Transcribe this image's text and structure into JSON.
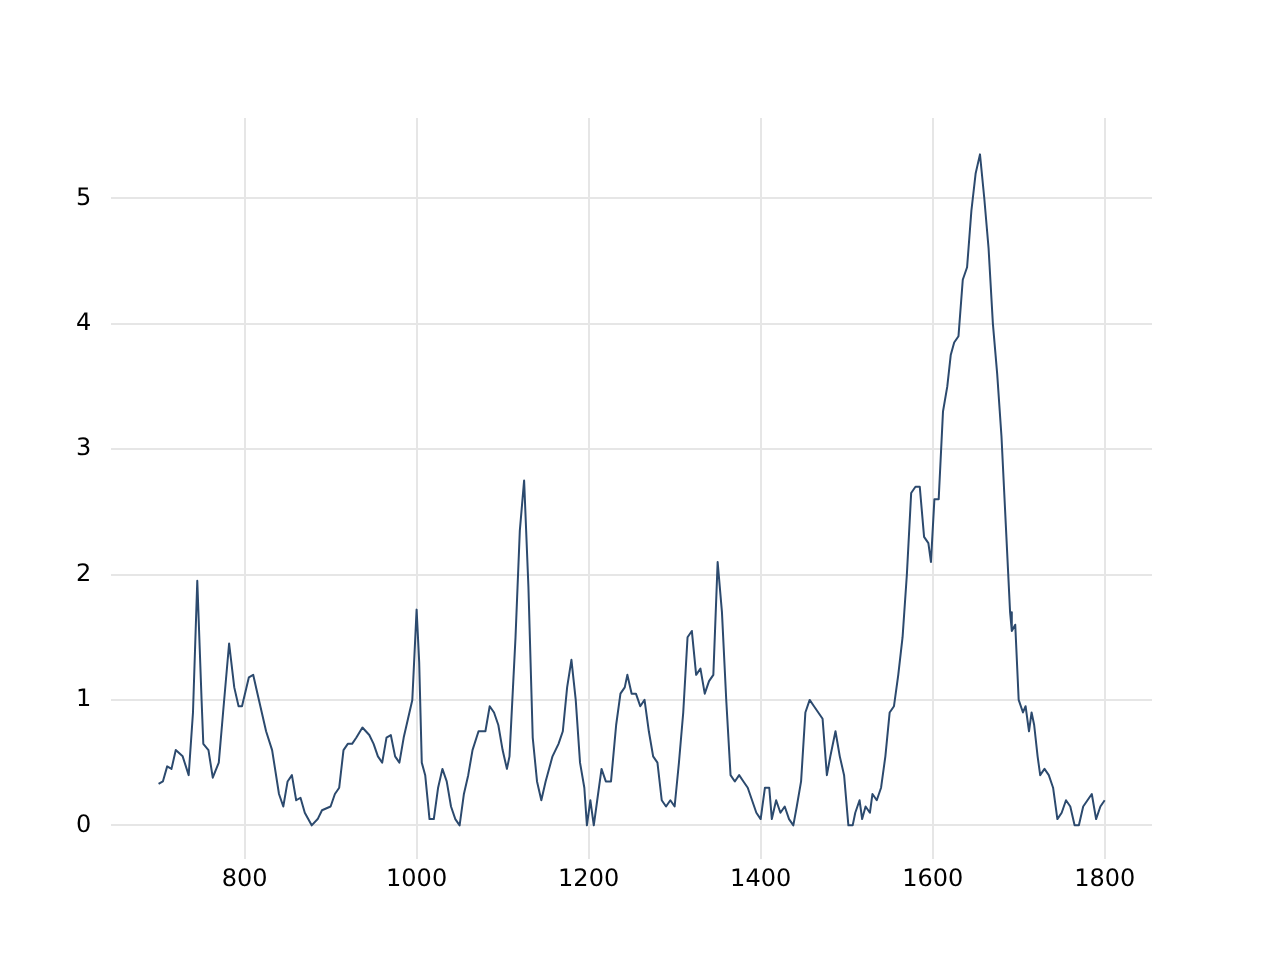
{
  "chart_data": {
    "type": "line",
    "x": [
      700,
      705,
      710,
      715,
      720,
      728,
      735,
      740,
      745,
      750,
      752,
      758,
      763,
      770,
      775,
      782,
      788,
      793,
      797,
      805,
      810,
      815,
      820,
      825,
      832,
      840,
      845,
      850,
      855,
      860,
      865,
      870,
      878,
      885,
      890,
      900,
      905,
      910,
      915,
      920,
      925,
      930,
      937,
      945,
      950,
      955,
      960,
      965,
      970,
      975,
      980,
      985,
      990,
      995,
      1000,
      1003,
      1006,
      1010,
      1015,
      1020,
      1025,
      1030,
      1035,
      1040,
      1045,
      1050,
      1055,
      1060,
      1065,
      1072,
      1080,
      1085,
      1090,
      1095,
      1100,
      1105,
      1108,
      1115,
      1120,
      1125,
      1130,
      1135,
      1140,
      1145,
      1150,
      1158,
      1165,
      1170,
      1175,
      1180,
      1185,
      1190,
      1195,
      1198,
      1202,
      1206,
      1210,
      1215,
      1220,
      1226,
      1232,
      1237,
      1242,
      1245,
      1250,
      1255,
      1260,
      1265,
      1270,
      1275,
      1280,
      1285,
      1290,
      1295,
      1300,
      1305,
      1310,
      1315,
      1320,
      1325,
      1330,
      1335,
      1340,
      1345,
      1350,
      1355,
      1360,
      1365,
      1370,
      1375,
      1380,
      1385,
      1390,
      1395,
      1400,
      1405,
      1410,
      1413,
      1418,
      1423,
      1428,
      1433,
      1438,
      1442,
      1447,
      1452,
      1457,
      1462,
      1467,
      1472,
      1477,
      1481,
      1487,
      1492,
      1497,
      1502,
      1507,
      1510,
      1515,
      1518,
      1522,
      1527,
      1530,
      1535,
      1540,
      1545,
      1550,
      1555,
      1560,
      1565,
      1570,
      1575,
      1580,
      1585,
      1590,
      1595,
      1598,
      1602,
      1607,
      1612,
      1617,
      1621,
      1625,
      1630,
      1635,
      1640,
      1645,
      1650,
      1655,
      1660,
      1665,
      1670,
      1675,
      1680,
      1685,
      1690,
      1692,
      1696,
      1700,
      1705,
      1708,
      1712,
      1715,
      1718,
      1722,
      1725,
      1730,
      1735,
      1740,
      1745,
      1750,
      1755,
      1760,
      1765,
      1770,
      1775,
      1780,
      1785,
      1790,
      1795,
      1800
    ],
    "series": [
      {
        "color": "#2c4a6e",
        "values": [
          0.33,
          0.35,
          0.47,
          0.45,
          0.6,
          0.55,
          0.4,
          0.9,
          1.95,
          1.0,
          0.65,
          0.6,
          0.38,
          0.5,
          0.9,
          1.45,
          1.1,
          0.95,
          0.95,
          1.18,
          1.2,
          1.05,
          0.9,
          0.75,
          0.6,
          0.25,
          0.15,
          0.35,
          0.4,
          0.2,
          0.22,
          0.1,
          0.0,
          0.05,
          0.12,
          0.15,
          0.25,
          0.3,
          0.6,
          0.65,
          0.65,
          0.7,
          0.78,
          0.72,
          0.65,
          0.55,
          0.5,
          0.7,
          0.72,
          0.55,
          0.5,
          0.7,
          0.85,
          1.0,
          1.72,
          1.3,
          0.5,
          0.4,
          0.05,
          0.05,
          0.3,
          0.45,
          0.35,
          0.15,
          0.05,
          0.0,
          0.25,
          0.4,
          0.6,
          0.75,
          0.75,
          0.95,
          0.9,
          0.8,
          0.6,
          0.45,
          0.55,
          1.5,
          2.35,
          2.75,
          1.9,
          0.7,
          0.35,
          0.2,
          0.35,
          0.55,
          0.65,
          0.75,
          1.1,
          1.32,
          1.0,
          0.5,
          0.3,
          0.0,
          0.2,
          0.0,
          0.2,
          0.45,
          0.35,
          0.35,
          0.8,
          1.05,
          1.1,
          1.2,
          1.05,
          1.05,
          0.95,
          1.0,
          0.75,
          0.55,
          0.5,
          0.2,
          0.15,
          0.2,
          0.15,
          0.5,
          0.9,
          1.5,
          1.55,
          1.2,
          1.25,
          1.05,
          1.15,
          1.2,
          2.1,
          1.7,
          1.0,
          0.4,
          0.35,
          0.4,
          0.35,
          0.3,
          0.2,
          0.1,
          0.05,
          0.3,
          0.3,
          0.05,
          0.2,
          0.1,
          0.15,
          0.05,
          0.0,
          0.15,
          0.35,
          0.9,
          1.0,
          0.95,
          0.9,
          0.85,
          0.4,
          0.55,
          0.75,
          0.55,
          0.4,
          0.0,
          0.0,
          0.1,
          0.2,
          0.05,
          0.15,
          0.1,
          0.25,
          0.2,
          0.3,
          0.55,
          0.9,
          0.95,
          1.2,
          1.5,
          2.0,
          2.65,
          2.7,
          2.7,
          2.3,
          2.25,
          2.1,
          2.6,
          2.6,
          3.3,
          3.5,
          3.75,
          3.85,
          3.9,
          4.35,
          4.45,
          4.9,
          5.2,
          5.35,
          5.0,
          4.6,
          4.0,
          3.6,
          3.1,
          2.4,
          1.7,
          1.55,
          1.6,
          1.0,
          0.9,
          0.95,
          0.75,
          0.9,
          0.8,
          0.55,
          0.4,
          0.45,
          0.4,
          0.3,
          0.05,
          0.1,
          0.2,
          0.15,
          0.0,
          0.0,
          0.15,
          0.2,
          0.25,
          0.05,
          0.15,
          0.2
        ]
      }
    ],
    "xlim": [
      645,
      1855
    ],
    "ylim": [
      -0.27,
      5.64
    ],
    "xticks": [
      800,
      1000,
      1200,
      1400,
      1600,
      1800
    ],
    "yticks": [
      0,
      1,
      2,
      3,
      4,
      5
    ],
    "grid": true,
    "legend": false,
    "marker": "none",
    "line_style": "solid"
  }
}
